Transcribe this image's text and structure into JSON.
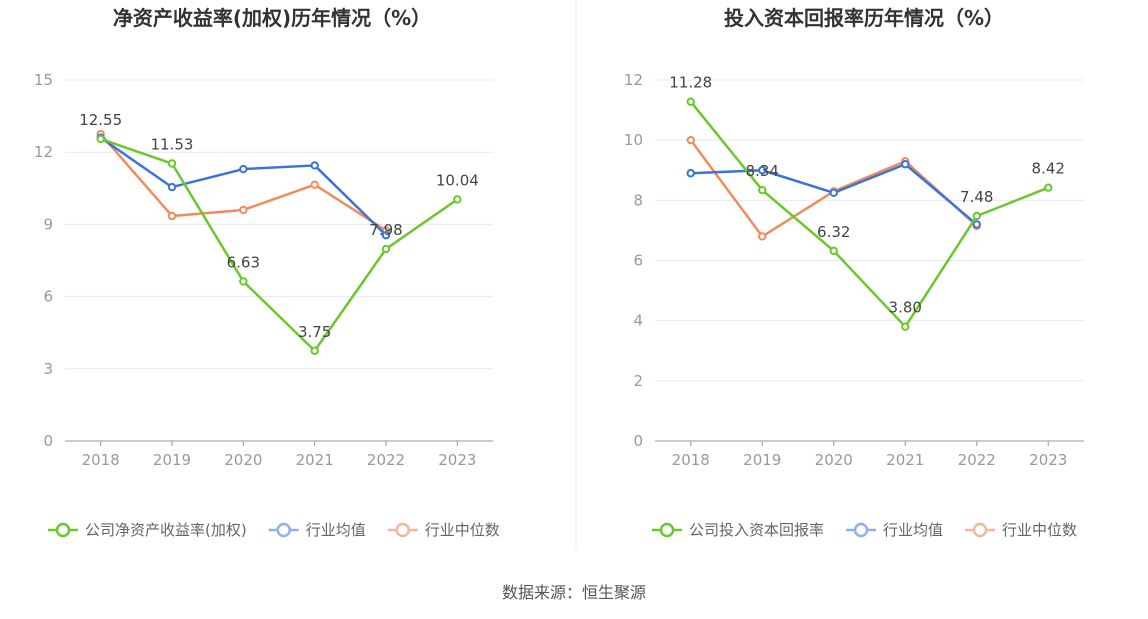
{
  "source_text": "数据来源：恒生聚源",
  "colors": {
    "company": "#6cc72f",
    "industry_avg": "#3b73dc",
    "industry_median": "#f28b5c",
    "legend_avg": "#8fb0ee",
    "legend_median": "#f5b79c",
    "grid": "#e6e9f4",
    "axis": "#999999"
  },
  "chart_data": [
    {
      "type": "line",
      "title": "净资产收益率(加权)历年情况（%）",
      "categories": [
        "2018",
        "2019",
        "2020",
        "2021",
        "2022",
        "2023"
      ],
      "ylim": [
        0,
        15
      ],
      "yticks": [
        "0",
        "3",
        "6",
        "9",
        "12",
        "15"
      ],
      "grid": true,
      "legend_position": "bottom",
      "series": [
        {
          "name": "公司净资产收益率(加权)",
          "key": "company",
          "values": [
            12.55,
            11.53,
            6.63,
            3.75,
            7.98,
            10.04
          ],
          "labels": [
            "12.55",
            "11.53",
            "6.63",
            "3.75",
            "7.98",
            "10.04"
          ]
        },
        {
          "name": "行业均值",
          "key": "industry_avg",
          "values": [
            12.6,
            10.55,
            11.3,
            11.45,
            8.55,
            null
          ]
        },
        {
          "name": "行业中位数",
          "key": "industry_median",
          "values": [
            12.75,
            9.35,
            9.6,
            10.65,
            8.75,
            null
          ]
        }
      ]
    },
    {
      "type": "line",
      "title": "投入资本回报率历年情况（%）",
      "categories": [
        "2018",
        "2019",
        "2020",
        "2021",
        "2022",
        "2023"
      ],
      "ylim": [
        0,
        12
      ],
      "yticks": [
        "0",
        "2",
        "4",
        "6",
        "8",
        "10",
        "12"
      ],
      "grid": true,
      "legend_position": "bottom",
      "series": [
        {
          "name": "公司投入资本回报率",
          "key": "company",
          "values": [
            11.28,
            8.34,
            6.32,
            3.8,
            7.48,
            8.42
          ],
          "labels": [
            "11.28",
            "8.34",
            "6.32",
            "3.80",
            "7.48",
            "8.42"
          ]
        },
        {
          "name": "行业均值",
          "key": "industry_avg",
          "values": [
            8.9,
            9.0,
            8.25,
            9.2,
            7.2,
            null
          ]
        },
        {
          "name": "行业中位数",
          "key": "industry_median",
          "values": [
            10.0,
            6.8,
            8.3,
            9.3,
            7.15,
            null
          ]
        }
      ]
    }
  ]
}
